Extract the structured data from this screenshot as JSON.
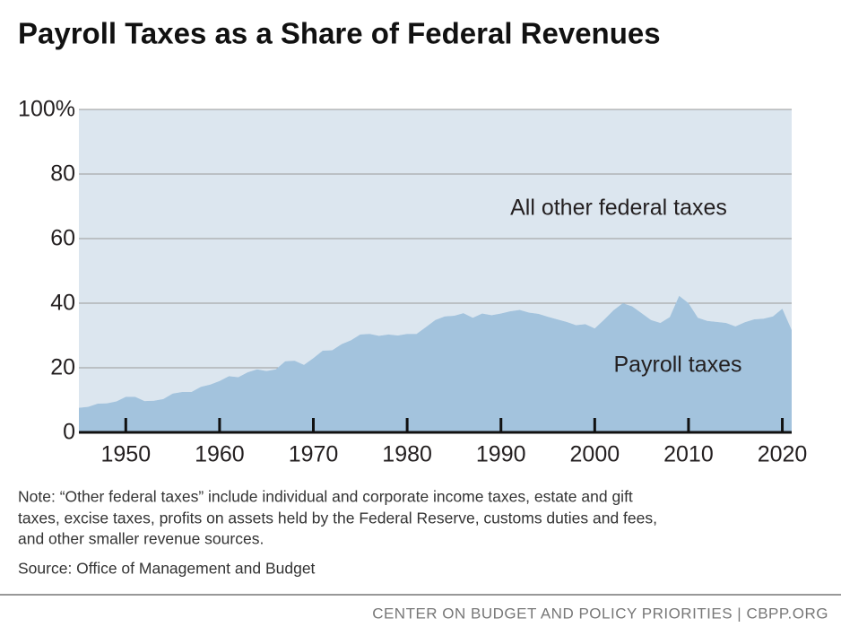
{
  "chart_data": {
    "type": "stacked_area",
    "title": "Payroll Taxes as a Share of Federal Revenues",
    "x": [
      1945,
      1946,
      1947,
      1948,
      1949,
      1950,
      1951,
      1952,
      1953,
      1954,
      1955,
      1956,
      1957,
      1958,
      1959,
      1960,
      1961,
      1962,
      1963,
      1964,
      1965,
      1966,
      1967,
      1968,
      1969,
      1970,
      1971,
      1972,
      1973,
      1974,
      1975,
      1976,
      1977,
      1978,
      1979,
      1980,
      1981,
      1982,
      1983,
      1984,
      1985,
      1986,
      1987,
      1988,
      1989,
      1990,
      1991,
      1992,
      1993,
      1994,
      1995,
      1996,
      1997,
      1998,
      1999,
      2000,
      2001,
      2002,
      2003,
      2004,
      2005,
      2006,
      2007,
      2008,
      2009,
      2010,
      2011,
      2012,
      2013,
      2014,
      2015,
      2016,
      2017,
      2018,
      2019,
      2020,
      2021
    ],
    "series": [
      {
        "name": "Payroll taxes",
        "color": "#a3c3dd",
        "values": [
          7.6,
          7.9,
          8.9,
          9.0,
          9.6,
          11.0,
          11.0,
          9.7,
          9.8,
          10.3,
          12.0,
          12.5,
          12.5,
          14.1,
          14.8,
          15.9,
          17.4,
          17.1,
          18.6,
          19.5,
          19.0,
          19.5,
          22.0,
          22.2,
          20.9,
          23.0,
          25.3,
          25.4,
          27.3,
          28.5,
          30.3,
          30.5,
          29.9,
          30.3,
          30.0,
          30.5,
          30.5,
          32.6,
          34.8,
          35.9,
          36.1,
          36.9,
          35.5,
          36.8,
          36.3,
          36.8,
          37.5,
          37.9,
          37.1,
          36.7,
          35.8,
          35.0,
          34.2,
          33.2,
          33.5,
          32.2,
          34.9,
          37.8,
          40.0,
          39.0,
          36.9,
          34.8,
          33.9,
          35.7,
          42.3,
          40.0,
          35.5,
          34.5,
          34.2,
          33.9,
          32.8,
          34.1,
          35.0,
          35.2,
          35.9,
          38.3,
          31.7
        ]
      },
      {
        "name": "All other federal taxes",
        "color": "#dce6ef",
        "values": [
          92.4,
          92.1,
          91.1,
          91.0,
          90.4,
          89.0,
          89.0,
          90.3,
          90.2,
          89.7,
          88.0,
          87.5,
          87.5,
          85.9,
          85.2,
          84.1,
          82.6,
          82.9,
          81.4,
          80.5,
          81.0,
          80.5,
          78.0,
          77.8,
          79.1,
          77.0,
          74.7,
          74.6,
          72.7,
          71.5,
          69.7,
          69.5,
          70.1,
          69.7,
          70.0,
          69.5,
          69.5,
          67.4,
          65.2,
          64.1,
          63.9,
          63.1,
          64.5,
          63.2,
          63.7,
          63.2,
          62.5,
          62.1,
          62.9,
          63.3,
          64.2,
          65.0,
          65.8,
          66.8,
          66.5,
          67.8,
          65.1,
          62.2,
          60.0,
          61.0,
          63.1,
          65.2,
          66.1,
          64.3,
          57.7,
          60.0,
          64.5,
          65.5,
          65.8,
          66.1,
          67.2,
          65.9,
          65.0,
          64.8,
          64.1,
          61.7,
          68.3
        ]
      }
    ],
    "xlim": [
      1945,
      2021
    ],
    "xticks": [
      1950,
      1960,
      1970,
      1980,
      1990,
      2000,
      2010,
      2020
    ],
    "ylim": [
      0,
      100
    ],
    "yticks": [
      0,
      20,
      40,
      60,
      80,
      {
        "value": 100,
        "label": "100%"
      }
    ],
    "grid": true,
    "note": [
      "Note: “Other federal taxes” include individual and corporate income taxes, estate and gift",
      "taxes, excise taxes, profits on assets held by the Federal Reserve, customs duties and fees,",
      "and other smaller revenue sources."
    ],
    "source": "Source: Office of Management and Budget",
    "footer": "CENTER ON BUDGET AND POLICY PRIORITIES | CBPP.ORG"
  }
}
